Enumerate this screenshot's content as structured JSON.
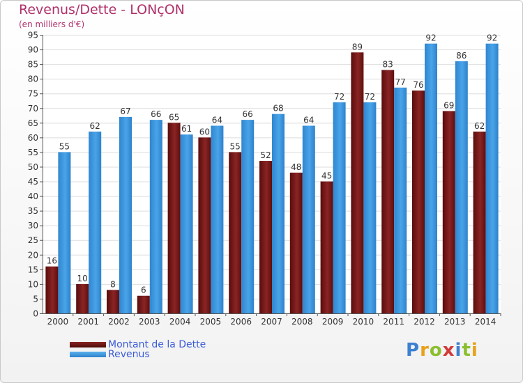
{
  "title": "Revenus/Dette - LONçON",
  "subtitle": "(en milliers d'€)",
  "legend": {
    "debt_label": "Montant de la Dette",
    "revenue_label": "Revenus"
  },
  "logo": {
    "text": "Proxiti"
  },
  "chart_data": {
    "type": "bar",
    "categories": [
      "2000",
      "2001",
      "2002",
      "2003",
      "2004",
      "2005",
      "2006",
      "2007",
      "2008",
      "2009",
      "2010",
      "2011",
      "2012",
      "2013",
      "2014"
    ],
    "series": [
      {
        "name": "Montant de la Dette",
        "color": "#7a1616",
        "values": [
          16,
          10,
          8,
          6,
          65,
          60,
          55,
          52,
          48,
          45,
          89,
          83,
          76,
          69,
          62
        ]
      },
      {
        "name": "Revenus",
        "color": "#3d95dc",
        "values": [
          55,
          62,
          67,
          66,
          61,
          64,
          66,
          68,
          64,
          72,
          72,
          77,
          92,
          86,
          92
        ]
      }
    ],
    "ylim": [
      0,
      95
    ],
    "ytick_step": 5,
    "grid": true,
    "legend_position": "bottom-left"
  }
}
